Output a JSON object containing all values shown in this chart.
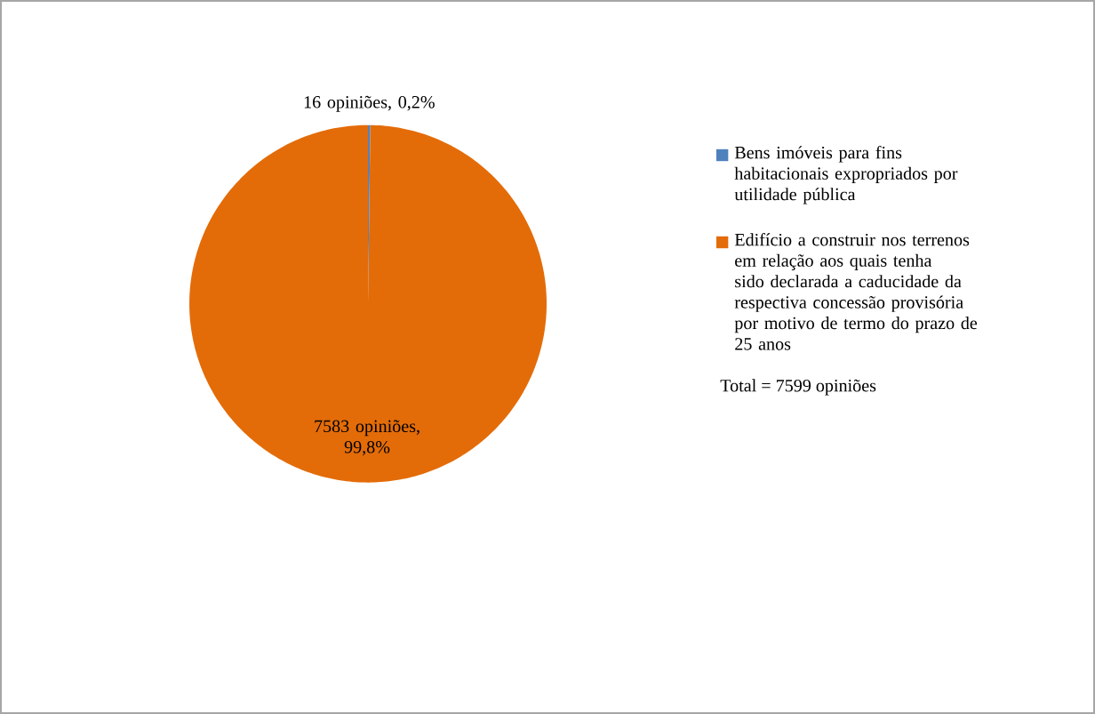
{
  "chart_data": {
    "type": "pie",
    "categories": [
      "Bens imóveis para fins habitacionais expropriados por utilidade pública",
      "Edifício a construir nos terrenos em relação aos quais tenha sido declarada a caducidade da respectiva concessão provisória por motivo de termo do prazo de 25 anos"
    ],
    "values": [
      16,
      7583
    ],
    "colors": [
      "#4f81bd",
      "#e36c09"
    ],
    "value_labels": [
      "16 opiniões, 0,2%",
      "7583 opiniões, 99,8%"
    ],
    "legend": "right",
    "annotations": [
      "Total = 7599 opiniões"
    ]
  }
}
